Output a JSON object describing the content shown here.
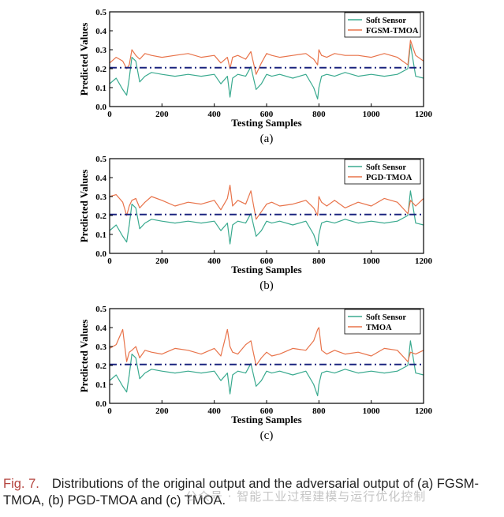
{
  "chart_data": [
    {
      "type": "line",
      "panel_label": "(a)",
      "xlabel": "Testing Samples",
      "ylabel": "Predicted Values",
      "xlim": [
        0,
        1200
      ],
      "ylim": [
        0,
        0.5
      ],
      "xticks": [
        0,
        200,
        400,
        600,
        800,
        1000,
        1200
      ],
      "yticks": [
        0.0,
        0.1,
        0.2,
        0.3,
        0.4,
        0.5
      ],
      "reference_line": 0.205,
      "legend_position": "top-right",
      "series": [
        {
          "name": "Soft Sensor",
          "color": "#3aaa8f",
          "x": [
            0,
            25,
            50,
            65,
            75,
            85,
            100,
            115,
            135,
            160,
            200,
            250,
            300,
            350,
            400,
            425,
            450,
            460,
            470,
            490,
            520,
            540,
            560,
            580,
            600,
            620,
            650,
            700,
            750,
            780,
            795,
            800,
            810,
            830,
            860,
            900,
            950,
            1000,
            1050,
            1100,
            1140,
            1150,
            1170,
            1200
          ],
          "y": [
            0.12,
            0.15,
            0.09,
            0.06,
            0.15,
            0.26,
            0.24,
            0.13,
            0.16,
            0.18,
            0.17,
            0.16,
            0.17,
            0.16,
            0.17,
            0.12,
            0.16,
            0.05,
            0.15,
            0.17,
            0.16,
            0.21,
            0.09,
            0.12,
            0.17,
            0.16,
            0.17,
            0.15,
            0.17,
            0.1,
            0.04,
            0.1,
            0.16,
            0.17,
            0.16,
            0.18,
            0.16,
            0.17,
            0.16,
            0.17,
            0.2,
            0.33,
            0.16,
            0.15
          ]
        },
        {
          "name": "FGSM-TMOA",
          "color": "#e8734a",
          "x": [
            0,
            25,
            50,
            65,
            75,
            85,
            100,
            115,
            135,
            160,
            200,
            250,
            300,
            350,
            400,
            425,
            450,
            460,
            470,
            490,
            520,
            540,
            560,
            580,
            600,
            620,
            650,
            700,
            750,
            780,
            795,
            800,
            810,
            830,
            860,
            900,
            950,
            1000,
            1050,
            1100,
            1140,
            1150,
            1170,
            1200
          ],
          "y": [
            0.23,
            0.26,
            0.24,
            0.2,
            0.22,
            0.3,
            0.27,
            0.25,
            0.28,
            0.27,
            0.26,
            0.27,
            0.28,
            0.26,
            0.27,
            0.23,
            0.26,
            0.2,
            0.26,
            0.27,
            0.25,
            0.29,
            0.17,
            0.23,
            0.28,
            0.27,
            0.26,
            0.27,
            0.28,
            0.25,
            0.22,
            0.3,
            0.27,
            0.26,
            0.28,
            0.27,
            0.27,
            0.26,
            0.28,
            0.26,
            0.22,
            0.35,
            0.27,
            0.24
          ]
        }
      ]
    },
    {
      "type": "line",
      "panel_label": "(b)",
      "xlabel": "Testing Samples",
      "ylabel": "Predicted Values",
      "xlim": [
        0,
        1200
      ],
      "ylim": [
        0,
        0.5
      ],
      "xticks": [
        0,
        200,
        400,
        600,
        800,
        1000,
        1200
      ],
      "yticks": [
        0.0,
        0.1,
        0.2,
        0.3,
        0.4,
        0.5
      ],
      "reference_line": 0.205,
      "legend_position": "top-right",
      "series": [
        {
          "name": "Soft Sensor",
          "color": "#3aaa8f",
          "x": [
            0,
            25,
            50,
            65,
            75,
            85,
            100,
            115,
            135,
            160,
            200,
            250,
            300,
            350,
            400,
            425,
            450,
            460,
            470,
            490,
            520,
            540,
            560,
            580,
            600,
            620,
            650,
            700,
            750,
            780,
            795,
            800,
            810,
            830,
            860,
            900,
            950,
            1000,
            1050,
            1100,
            1140,
            1150,
            1170,
            1200
          ],
          "y": [
            0.12,
            0.15,
            0.09,
            0.06,
            0.15,
            0.26,
            0.24,
            0.13,
            0.16,
            0.18,
            0.17,
            0.16,
            0.17,
            0.16,
            0.17,
            0.12,
            0.16,
            0.05,
            0.15,
            0.17,
            0.16,
            0.21,
            0.09,
            0.12,
            0.17,
            0.16,
            0.17,
            0.15,
            0.17,
            0.1,
            0.04,
            0.1,
            0.16,
            0.17,
            0.16,
            0.18,
            0.16,
            0.17,
            0.16,
            0.17,
            0.2,
            0.33,
            0.16,
            0.15
          ]
        },
        {
          "name": "PGD-TMOA",
          "color": "#e8734a",
          "x": [
            0,
            25,
            50,
            65,
            75,
            85,
            100,
            115,
            135,
            160,
            200,
            250,
            300,
            350,
            400,
            425,
            450,
            460,
            470,
            490,
            520,
            540,
            560,
            580,
            600,
            620,
            650,
            700,
            750,
            780,
            795,
            800,
            810,
            830,
            860,
            900,
            950,
            1000,
            1050,
            1100,
            1140,
            1150,
            1170,
            1200
          ],
          "y": [
            0.3,
            0.31,
            0.27,
            0.2,
            0.25,
            0.28,
            0.29,
            0.24,
            0.27,
            0.3,
            0.28,
            0.25,
            0.27,
            0.26,
            0.28,
            0.23,
            0.29,
            0.36,
            0.25,
            0.28,
            0.26,
            0.33,
            0.18,
            0.22,
            0.26,
            0.27,
            0.25,
            0.26,
            0.28,
            0.24,
            0.2,
            0.3,
            0.27,
            0.25,
            0.28,
            0.24,
            0.27,
            0.25,
            0.29,
            0.27,
            0.21,
            0.28,
            0.25,
            0.29
          ]
        }
      ]
    },
    {
      "type": "line",
      "panel_label": "(c)",
      "xlabel": "Testing Samples",
      "ylabel": "Predicted Values",
      "xlim": [
        0,
        1200
      ],
      "ylim": [
        0,
        0.5
      ],
      "xticks": [
        0,
        200,
        400,
        600,
        800,
        1000,
        1200
      ],
      "yticks": [
        0.0,
        0.1,
        0.2,
        0.3,
        0.4,
        0.5
      ],
      "reference_line": 0.205,
      "legend_position": "top-right",
      "series": [
        {
          "name": "Soft Sensor",
          "color": "#3aaa8f",
          "x": [
            0,
            25,
            50,
            65,
            75,
            85,
            100,
            115,
            135,
            160,
            200,
            250,
            300,
            350,
            400,
            425,
            450,
            460,
            470,
            490,
            520,
            540,
            560,
            580,
            600,
            620,
            650,
            700,
            750,
            780,
            795,
            800,
            810,
            830,
            860,
            900,
            950,
            1000,
            1050,
            1100,
            1140,
            1150,
            1170,
            1200
          ],
          "y": [
            0.12,
            0.15,
            0.09,
            0.06,
            0.15,
            0.26,
            0.24,
            0.13,
            0.16,
            0.18,
            0.17,
            0.16,
            0.17,
            0.16,
            0.17,
            0.12,
            0.16,
            0.05,
            0.15,
            0.17,
            0.16,
            0.21,
            0.09,
            0.12,
            0.17,
            0.16,
            0.17,
            0.15,
            0.17,
            0.1,
            0.04,
            0.1,
            0.16,
            0.17,
            0.16,
            0.18,
            0.16,
            0.17,
            0.16,
            0.17,
            0.2,
            0.33,
            0.16,
            0.15
          ]
        },
        {
          "name": "TMOA",
          "color": "#e8734a",
          "x": [
            0,
            25,
            50,
            65,
            75,
            85,
            100,
            115,
            135,
            160,
            200,
            250,
            300,
            350,
            400,
            425,
            450,
            460,
            470,
            490,
            520,
            540,
            560,
            580,
            600,
            620,
            650,
            700,
            750,
            780,
            795,
            800,
            810,
            830,
            860,
            900,
            950,
            1000,
            1050,
            1100,
            1140,
            1150,
            1170,
            1200
          ],
          "y": [
            0.29,
            0.31,
            0.39,
            0.22,
            0.27,
            0.28,
            0.3,
            0.24,
            0.28,
            0.27,
            0.26,
            0.29,
            0.28,
            0.26,
            0.29,
            0.25,
            0.39,
            0.3,
            0.27,
            0.26,
            0.31,
            0.33,
            0.2,
            0.24,
            0.27,
            0.25,
            0.26,
            0.29,
            0.28,
            0.33,
            0.39,
            0.4,
            0.28,
            0.26,
            0.28,
            0.26,
            0.27,
            0.25,
            0.29,
            0.28,
            0.22,
            0.27,
            0.26,
            0.28
          ]
        }
      ]
    }
  ],
  "caption": {
    "label": "Fig. 7.",
    "text": "Distributions of the original output and the adversarial output of (a) FGSM-TMOA, (b) PGD-TMOA and (c) TMOA."
  },
  "watermark": "公众号 · 智能工业过程建模与运行优化控制"
}
